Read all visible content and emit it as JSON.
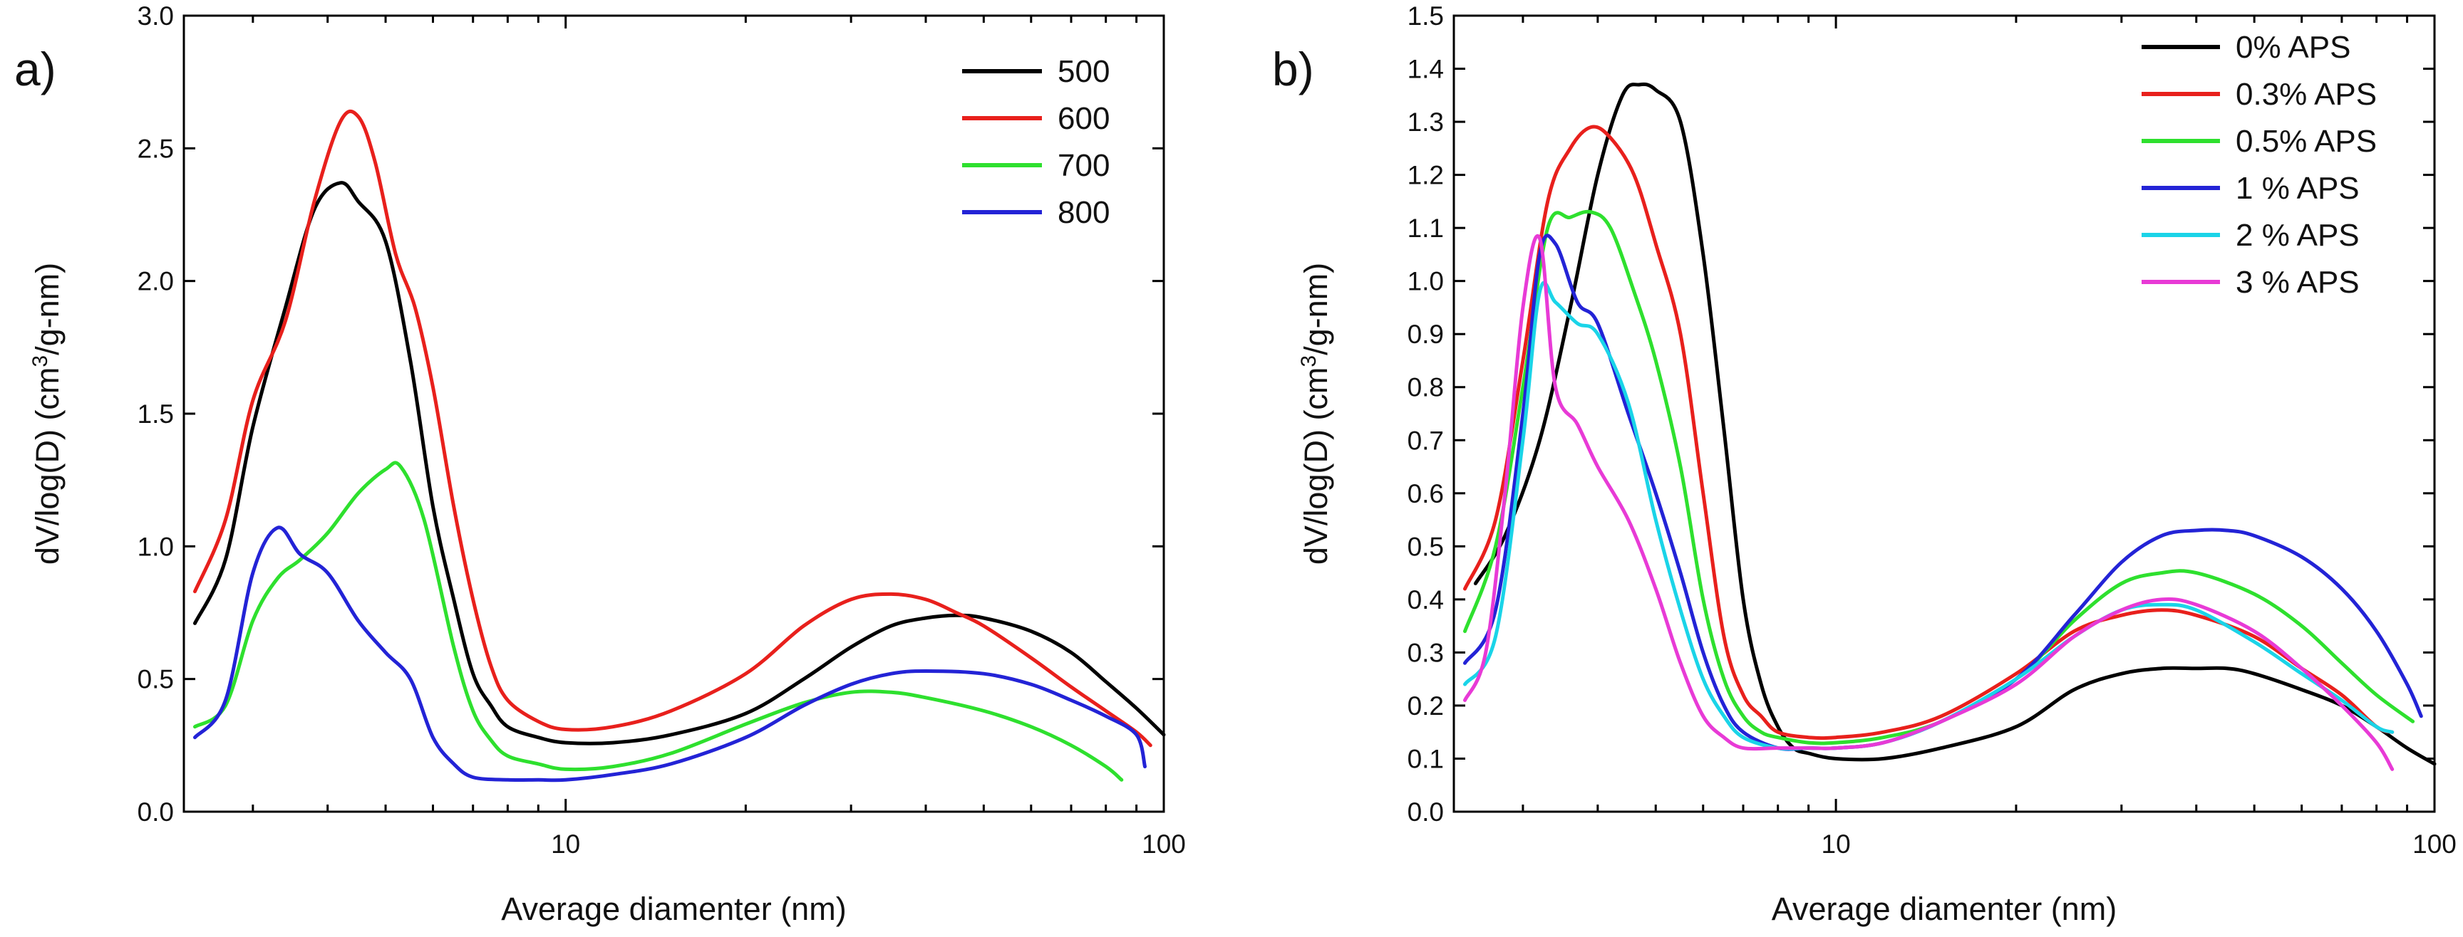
{
  "chart_data": [
    {
      "type": "line",
      "panel_label": "a)",
      "xlabel": "Average diamenter (nm)",
      "ylabel": "dV/log(D) (cm",
      "ylabel_sup": "3",
      "ylabel_tail": "/g-nm)",
      "xscale": "log",
      "xlim": [
        2.3,
        100
      ],
      "ylim": [
        0,
        3.0
      ],
      "y_ticks": [
        "0.0",
        "0.5",
        "1.0",
        "1.5",
        "2.0",
        "2.5",
        "3.0"
      ],
      "x_ticks": [
        "10",
        "100"
      ],
      "legend_position": "top-right",
      "series": [
        {
          "name": "500",
          "color": "#000000",
          "x": [
            2.4,
            2.7,
            3.0,
            3.4,
            3.8,
            4.2,
            4.5,
            5.0,
            5.5,
            6.0,
            6.5,
            7.0,
            7.5,
            8.0,
            9.0,
            10.0,
            12.0,
            15.0,
            20.0,
            25.0,
            30.0,
            35.0,
            40.0,
            45.0,
            50.0,
            60.0,
            70.0,
            80.0,
            90.0,
            100.0
          ],
          "y": [
            0.71,
            0.95,
            1.45,
            1.9,
            2.27,
            2.37,
            2.3,
            2.15,
            1.7,
            1.15,
            0.8,
            0.52,
            0.4,
            0.32,
            0.28,
            0.26,
            0.26,
            0.29,
            0.37,
            0.5,
            0.62,
            0.7,
            0.73,
            0.74,
            0.73,
            0.68,
            0.6,
            0.49,
            0.39,
            0.29
          ]
        },
        {
          "name": "600",
          "color": "#e8201c",
          "x": [
            2.4,
            2.7,
            3.0,
            3.4,
            3.8,
            4.2,
            4.5,
            4.8,
            5.2,
            5.6,
            6.0,
            6.5,
            7.0,
            7.5,
            8.0,
            9.0,
            10.0,
            12.0,
            15.0,
            20.0,
            25.0,
            30.0,
            35.0,
            40.0,
            45.0,
            50.0,
            60.0,
            70.0,
            80.0,
            90.0,
            95.0
          ],
          "y": [
            0.83,
            1.1,
            1.55,
            1.85,
            2.3,
            2.6,
            2.62,
            2.45,
            2.1,
            1.9,
            1.6,
            1.15,
            0.8,
            0.55,
            0.42,
            0.34,
            0.31,
            0.32,
            0.38,
            0.52,
            0.7,
            0.8,
            0.82,
            0.8,
            0.75,
            0.7,
            0.58,
            0.47,
            0.38,
            0.3,
            0.25
          ]
        },
        {
          "name": "700",
          "color": "#2ee02e",
          "x": [
            2.4,
            2.7,
            3.0,
            3.3,
            3.6,
            4.0,
            4.5,
            5.0,
            5.3,
            5.8,
            6.5,
            7.0,
            7.5,
            8.0,
            9.0,
            10.0,
            12.0,
            15.0,
            20.0,
            25.0,
            30.0,
            35.0,
            40.0,
            50.0,
            60.0,
            70.0,
            80.0,
            85.0
          ],
          "y": [
            0.32,
            0.4,
            0.72,
            0.88,
            0.95,
            1.05,
            1.2,
            1.29,
            1.3,
            1.1,
            0.62,
            0.38,
            0.27,
            0.21,
            0.18,
            0.16,
            0.17,
            0.22,
            0.33,
            0.41,
            0.45,
            0.45,
            0.43,
            0.38,
            0.32,
            0.25,
            0.17,
            0.12
          ]
        },
        {
          "name": "800",
          "color": "#2323d6",
          "x": [
            2.4,
            2.7,
            3.0,
            3.3,
            3.6,
            4.0,
            4.5,
            5.0,
            5.5,
            6.0,
            6.5,
            7.0,
            8.0,
            9.0,
            10.0,
            12.0,
            15.0,
            20.0,
            25.0,
            30.0,
            35.0,
            40.0,
            50.0,
            60.0,
            70.0,
            80.0,
            90.0,
            93.0
          ],
          "y": [
            0.28,
            0.42,
            0.9,
            1.07,
            0.97,
            0.9,
            0.72,
            0.6,
            0.5,
            0.28,
            0.18,
            0.13,
            0.12,
            0.12,
            0.12,
            0.14,
            0.18,
            0.28,
            0.4,
            0.48,
            0.52,
            0.53,
            0.52,
            0.48,
            0.42,
            0.36,
            0.29,
            0.17
          ]
        }
      ]
    },
    {
      "type": "line",
      "panel_label": "b)",
      "xlabel": "Average diamenter (nm)",
      "ylabel": "dV/log(D) (cm",
      "ylabel_sup": "3",
      "ylabel_tail": "/g-nm)",
      "xscale": "log",
      "xlim": [
        2.3,
        100
      ],
      "ylim": [
        0,
        1.5
      ],
      "y_ticks": [
        "0.0",
        "0.1",
        "0.2",
        "0.3",
        "0.4",
        "0.5",
        "0.6",
        "0.7",
        "0.8",
        "0.9",
        "1.0",
        "1.1",
        "1.2",
        "1.3",
        "1.4",
        "1.5"
      ],
      "x_ticks": [
        "10",
        "100"
      ],
      "legend_position": "top-right",
      "series": [
        {
          "name": "0% APS",
          "color": "#000000",
          "x": [
            2.5,
            2.8,
            3.2,
            3.6,
            4.0,
            4.4,
            4.7,
            5.0,
            5.5,
            6.0,
            6.5,
            7.0,
            7.5,
            8.0,
            8.5,
            9.0,
            10.0,
            12.0,
            15.0,
            20.0,
            25.0,
            30.0,
            35.0,
            40.0,
            45.0,
            50.0,
            60.0,
            70.0,
            80.0,
            90.0,
            100.0
          ],
          "y": [
            0.43,
            0.52,
            0.7,
            0.95,
            1.2,
            1.35,
            1.37,
            1.36,
            1.3,
            1.05,
            0.72,
            0.4,
            0.24,
            0.16,
            0.12,
            0.11,
            0.1,
            0.1,
            0.12,
            0.16,
            0.23,
            0.26,
            0.27,
            0.27,
            0.27,
            0.26,
            0.23,
            0.2,
            0.16,
            0.12,
            0.09
          ]
        },
        {
          "name": "0.3% APS",
          "color": "#e8201c",
          "x": [
            2.4,
            2.7,
            3.0,
            3.3,
            3.6,
            3.9,
            4.2,
            4.6,
            5.0,
            5.5,
            6.0,
            6.5,
            7.0,
            7.5,
            8.0,
            9.0,
            10.0,
            12.0,
            15.0,
            20.0,
            25.0,
            30.0,
            35.0,
            40.0,
            50.0,
            60.0,
            70.0,
            80.0,
            85.0
          ],
          "y": [
            0.42,
            0.55,
            0.85,
            1.15,
            1.25,
            1.29,
            1.27,
            1.2,
            1.07,
            0.9,
            0.6,
            0.33,
            0.22,
            0.18,
            0.15,
            0.14,
            0.14,
            0.15,
            0.18,
            0.26,
            0.34,
            0.37,
            0.38,
            0.37,
            0.33,
            0.27,
            0.22,
            0.16,
            0.15
          ]
        },
        {
          "name": "0.5% APS",
          "color": "#2ee02e",
          "x": [
            2.4,
            2.7,
            3.0,
            3.3,
            3.6,
            3.9,
            4.2,
            4.6,
            5.0,
            5.5,
            6.0,
            6.5,
            7.0,
            7.5,
            8.0,
            9.0,
            10.0,
            12.0,
            15.0,
            20.0,
            25.0,
            30.0,
            35.0,
            40.0,
            50.0,
            60.0,
            70.0,
            80.0,
            92.0
          ],
          "y": [
            0.34,
            0.5,
            0.8,
            1.1,
            1.12,
            1.13,
            1.1,
            0.98,
            0.85,
            0.65,
            0.4,
            0.25,
            0.18,
            0.15,
            0.14,
            0.13,
            0.13,
            0.14,
            0.17,
            0.25,
            0.36,
            0.43,
            0.45,
            0.45,
            0.41,
            0.35,
            0.28,
            0.22,
            0.17
          ]
        },
        {
          "name": "1 % APS",
          "color": "#2323d6",
          "x": [
            2.4,
            2.7,
            3.0,
            3.2,
            3.4,
            3.7,
            4.0,
            4.5,
            5.0,
            5.5,
            6.0,
            6.5,
            7.0,
            8.0,
            9.0,
            10.0,
            12.0,
            15.0,
            20.0,
            25.0,
            30.0,
            35.0,
            40.0,
            45.0,
            50.0,
            60.0,
            70.0,
            80.0,
            90.0,
            95.0
          ],
          "y": [
            0.28,
            0.38,
            0.75,
            1.05,
            1.07,
            0.96,
            0.92,
            0.75,
            0.6,
            0.45,
            0.3,
            0.2,
            0.15,
            0.12,
            0.12,
            0.12,
            0.13,
            0.17,
            0.25,
            0.37,
            0.47,
            0.52,
            0.53,
            0.53,
            0.52,
            0.48,
            0.42,
            0.34,
            0.24,
            0.18
          ]
        },
        {
          "name": "2 % APS",
          "color": "#1ad4e8",
          "x": [
            2.4,
            2.7,
            3.0,
            3.2,
            3.4,
            3.7,
            4.0,
            4.5,
            5.0,
            5.5,
            6.0,
            6.5,
            7.0,
            8.0,
            9.0,
            10.0,
            12.0,
            15.0,
            20.0,
            25.0,
            30.0,
            35.0,
            40.0,
            50.0,
            60.0,
            70.0,
            80.0,
            85.0
          ],
          "y": [
            0.24,
            0.33,
            0.7,
            0.98,
            0.96,
            0.92,
            0.9,
            0.77,
            0.55,
            0.38,
            0.25,
            0.18,
            0.14,
            0.12,
            0.12,
            0.12,
            0.13,
            0.17,
            0.25,
            0.33,
            0.38,
            0.39,
            0.38,
            0.32,
            0.26,
            0.21,
            0.16,
            0.15
          ]
        },
        {
          "name": "3 % APS",
          "color": "#e83ad6",
          "x": [
            2.4,
            2.6,
            2.8,
            3.0,
            3.2,
            3.4,
            3.7,
            4.0,
            4.5,
            5.0,
            5.5,
            6.0,
            6.5,
            7.0,
            8.0,
            9.0,
            10.0,
            12.0,
            15.0,
            20.0,
            25.0,
            30.0,
            35.0,
            40.0,
            50.0,
            60.0,
            70.0,
            80.0,
            85.0
          ],
          "y": [
            0.21,
            0.3,
            0.6,
            0.95,
            1.08,
            0.8,
            0.73,
            0.65,
            0.55,
            0.42,
            0.28,
            0.18,
            0.14,
            0.12,
            0.12,
            0.12,
            0.12,
            0.13,
            0.17,
            0.24,
            0.33,
            0.38,
            0.4,
            0.39,
            0.34,
            0.27,
            0.2,
            0.13,
            0.08
          ]
        }
      ]
    }
  ]
}
